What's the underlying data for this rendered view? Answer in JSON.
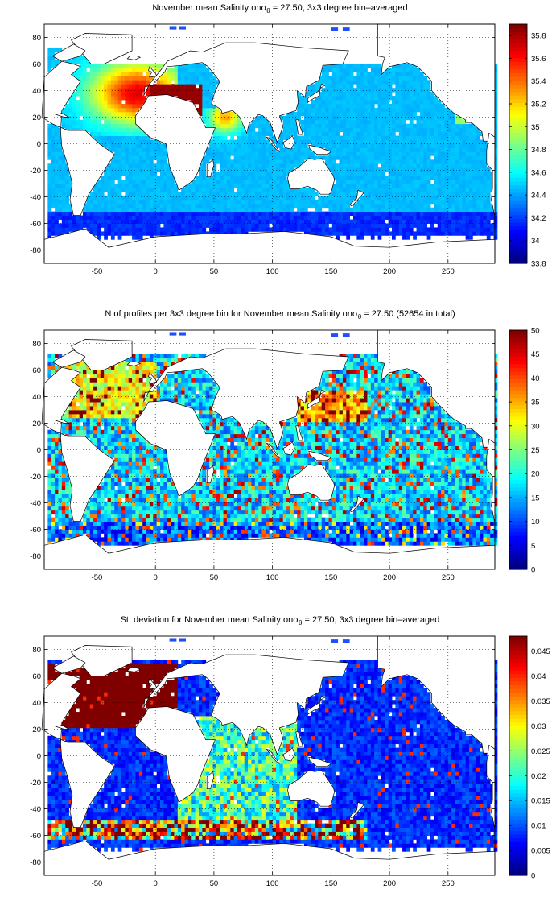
{
  "panels": [
    {
      "title_pre": "November mean Salinity on",
      "title_sym": "σ",
      "title_sub": "θ",
      "title_post": " = 27.50, 3x3 degree bin–averaged",
      "chart_data": {
        "type": "heatmap",
        "field": "salinity",
        "xlim": [
          -95,
          290
        ],
        "ylim": [
          -90,
          90
        ],
        "xticks": [
          "-50",
          "0",
          "50",
          "100",
          "150",
          "200",
          "250"
        ],
        "yticks": [
          "80",
          "60",
          "40",
          "20",
          "0",
          "-20",
          "-40",
          "-60",
          "-80"
        ],
        "colorbar": {
          "min": 33.8,
          "max": 35.9,
          "ticks": [
            "35.8",
            "35.6",
            "35.4",
            "35.2",
            "35",
            "34.8",
            "34.6",
            "34.4",
            "34.2",
            "34",
            "33.8"
          ]
        },
        "colormap": "jet",
        "grid": true
      }
    },
    {
      "title_pre": "N of profiles per 3x3 degree bin for November mean Salinity on",
      "title_sym": "σ",
      "title_sub": "θ",
      "title_post": " = 27.50 (52654 in total)",
      "chart_data": {
        "type": "heatmap",
        "field": "profile_count",
        "total_profiles": 52654,
        "xlim": [
          -95,
          290
        ],
        "ylim": [
          -90,
          90
        ],
        "xticks": [
          "-50",
          "0",
          "50",
          "100",
          "150",
          "200",
          "250"
        ],
        "yticks": [
          "80",
          "60",
          "40",
          "20",
          "0",
          "-20",
          "-40",
          "-60",
          "-80"
        ],
        "colorbar": {
          "min": 0,
          "max": 50,
          "ticks": [
            "50",
            "45",
            "40",
            "35",
            "30",
            "25",
            "20",
            "15",
            "10",
            "5",
            "0"
          ]
        },
        "colormap": "jet",
        "grid": true
      }
    },
    {
      "title_pre": "St. deviation for November mean Salinity on",
      "title_sym": "σ",
      "title_sub": "θ",
      "title_post": " = 27.50, 3x3 degree bin–averaged",
      "chart_data": {
        "type": "heatmap",
        "field": "std_dev",
        "xlim": [
          -95,
          290
        ],
        "ylim": [
          -90,
          90
        ],
        "xticks": [
          "-50",
          "0",
          "50",
          "100",
          "150",
          "200",
          "250"
        ],
        "yticks": [
          "80",
          "60",
          "40",
          "20",
          "0",
          "-20",
          "-40",
          "-60",
          "-80"
        ],
        "colorbar": {
          "min": 0,
          "max": 0.048,
          "ticks": [
            "0.045",
            "0.04",
            "0.035",
            "0.03",
            "0.025",
            "0.02",
            "0.015",
            "0.01",
            "0.005",
            "0"
          ]
        },
        "colormap": "jet",
        "grid": true
      }
    }
  ]
}
